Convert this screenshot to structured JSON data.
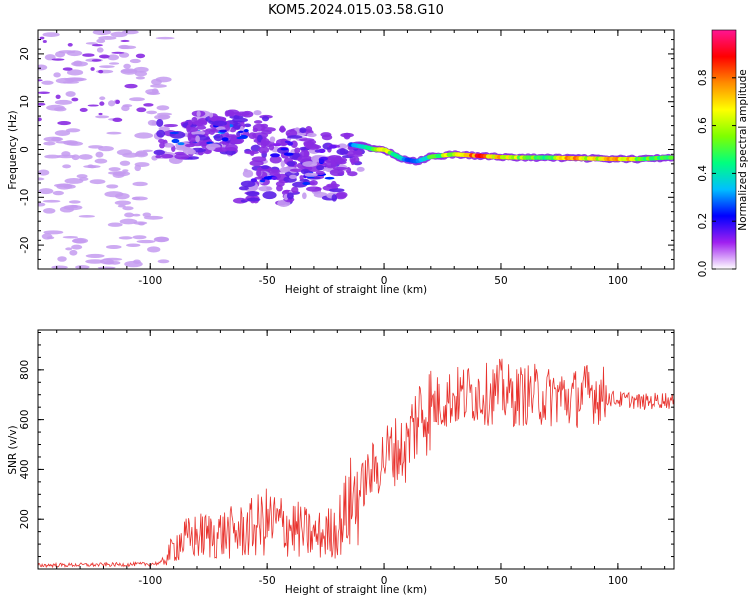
{
  "figure": {
    "title": "KOM5.2024.015.03.58.G10"
  },
  "colors": {
    "snr_line": "#e8322d",
    "blob_purple": "#8a2be2",
    "blob_lavender": "#c49bf0",
    "axis": "#000000",
    "colormap": [
      "#ffffff",
      "#a020f0",
      "#0000ff",
      "#00bfff",
      "#00ff7f",
      "#7fff00",
      "#ffff00",
      "#ff8c00",
      "#ff0000",
      "#ff1493"
    ]
  },
  "chart_data": [
    {
      "type": "heatmap",
      "title": "",
      "xlabel": "Height of straight line (km)",
      "ylabel": "Frequency (Hz)",
      "xlim": [
        -148,
        124
      ],
      "ylim": [
        -25,
        25
      ],
      "x_ticks": [
        -100,
        -50,
        0,
        50,
        100
      ],
      "y_ticks": [
        -20,
        -10,
        0,
        10,
        20
      ],
      "colorbar": {
        "label": "Normalized spectral amplitude",
        "range": [
          0,
          1
        ],
        "ticks": [
          0.0,
          0.2,
          0.4,
          0.6,
          0.8
        ]
      },
      "ridge": {
        "x": [
          -14,
          -8,
          -4,
          0,
          4,
          8,
          14,
          20,
          30,
          40,
          50,
          60,
          70,
          80,
          90,
          100,
          110,
          120
        ],
        "freq": [
          1,
          0.5,
          0,
          0,
          -1,
          -2,
          -2.5,
          -1.5,
          -1,
          -1.3,
          -1.6,
          -1.7,
          -1.7,
          -1.8,
          -1.9,
          -2,
          -2,
          -1.7
        ],
        "amplitude": [
          0.3,
          0.4,
          0.6,
          0.85,
          0.5,
          0.35,
          0.3,
          0.5,
          0.7,
          0.9,
          0.75,
          0.6,
          0.55,
          0.8,
          0.7,
          0.85,
          0.6,
          0.5
        ]
      },
      "clusters": [
        {
          "x": -85,
          "freq": 2,
          "amplitude": 0.2
        },
        {
          "x": -72,
          "freq": 3,
          "amplitude": 0.22
        },
        {
          "x": -62,
          "freq": 3.5,
          "amplitude": 0.2
        },
        {
          "x": -50,
          "freq": -7,
          "amplitude": 0.15
        },
        {
          "x": -30,
          "freq": -6,
          "amplitude": 0.15
        },
        {
          "x": -42,
          "freq": 0,
          "amplitude": 0.12
        },
        {
          "x": -22,
          "freq": -1,
          "amplitude": 0.13
        }
      ]
    },
    {
      "type": "line",
      "title": "",
      "xlabel": "Height of straight line (km)",
      "ylabel": "SNR (v/v)",
      "xlim": [
        -148,
        124
      ],
      "ylim": [
        0,
        960
      ],
      "x_ticks": [
        -100,
        -50,
        0,
        50,
        100
      ],
      "y_ticks": [
        200,
        400,
        600,
        800
      ],
      "series": [
        {
          "x": [
            -148,
            -110,
            -100,
            -95,
            -92,
            -88,
            -80,
            -70,
            -60,
            -55,
            -50,
            -45,
            -40,
            -35,
            -30,
            -25,
            -20,
            -15,
            -12,
            -10,
            -8,
            -5,
            -2,
            0,
            3,
            6,
            9,
            12,
            15,
            18,
            22,
            26,
            30,
            35,
            40,
            45,
            50,
            55,
            60,
            65,
            70,
            75,
            80,
            85,
            90,
            95,
            100,
            105,
            110,
            115,
            120,
            124
          ],
          "values": [
            15,
            18,
            20,
            25,
            60,
            110,
            130,
            140,
            150,
            170,
            190,
            180,
            170,
            150,
            130,
            140,
            160,
            250,
            300,
            320,
            360,
            390,
            420,
            450,
            470,
            480,
            470,
            560,
            620,
            640,
            660,
            680,
            690,
            700,
            710,
            700,
            720,
            690,
            700,
            700,
            690,
            700,
            680,
            700,
            710,
            690,
            680,
            680,
            670,
            675,
            680,
            670
          ]
        }
      ]
    }
  ]
}
